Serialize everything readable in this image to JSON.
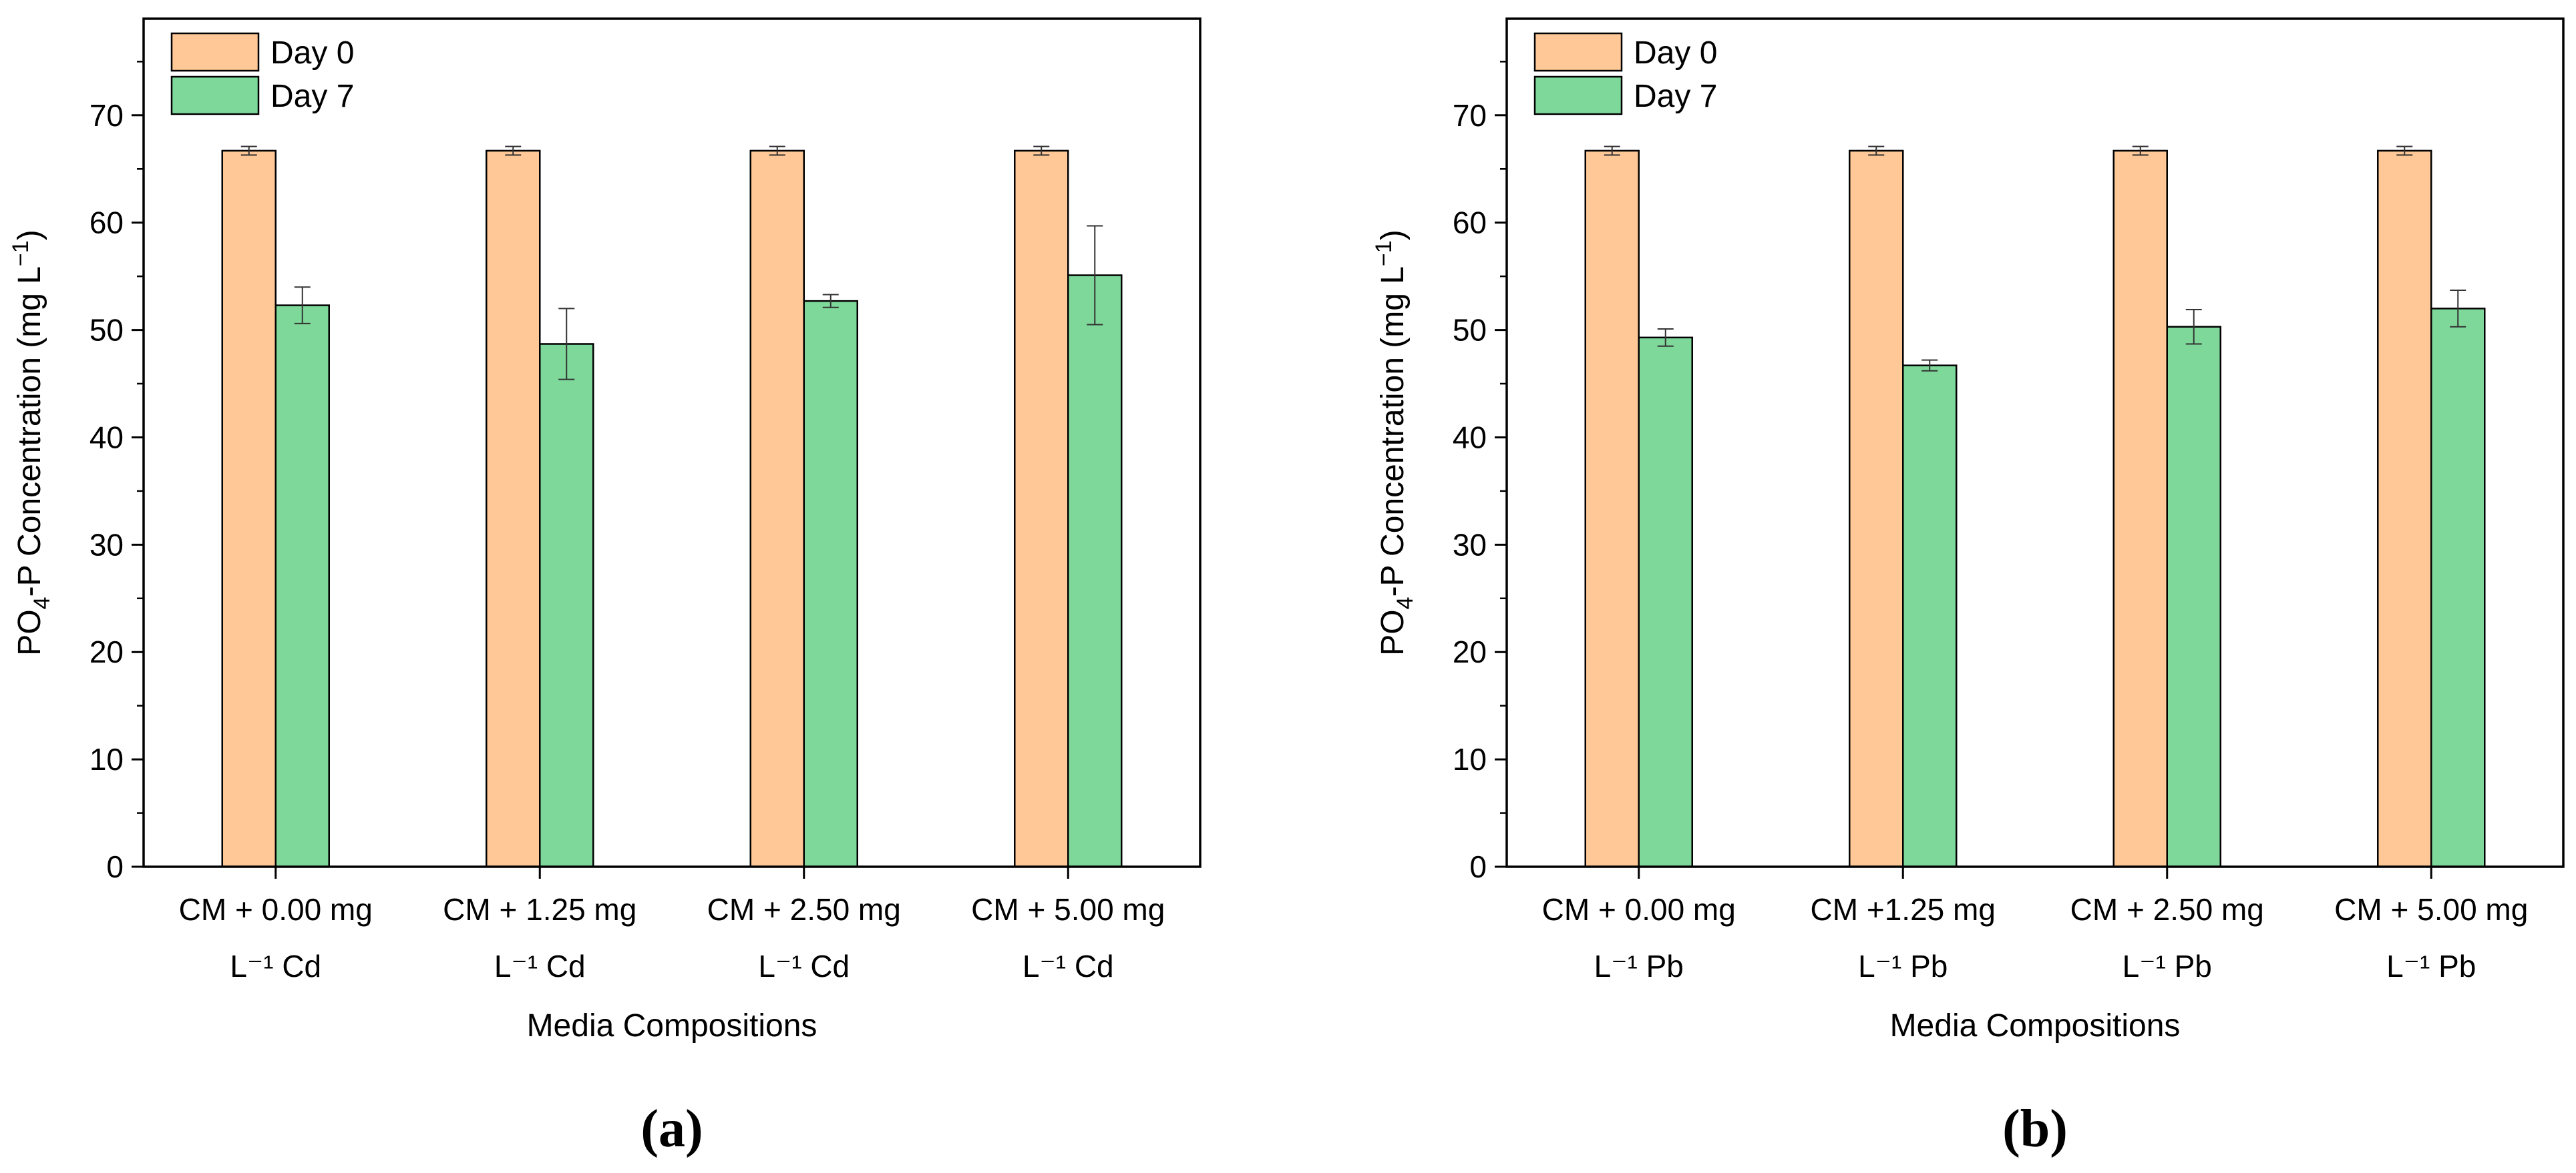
{
  "colors": {
    "day0": "#FFC896",
    "day7": "#7ED89A",
    "axis": "#000000"
  },
  "chart_data": [
    {
      "type": "bar",
      "panel_label": "(a)",
      "categories": [
        [
          "CM + 0.00 mg",
          "L⁻¹ Cd"
        ],
        [
          "CM + 1.25 mg",
          "L⁻¹ Cd"
        ],
        [
          "CM + 2.50 mg",
          "L⁻¹ Cd"
        ],
        [
          "CM + 5.00 mg",
          "L⁻¹ Cd"
        ]
      ],
      "series": [
        {
          "name": "Day 0",
          "values": [
            66.7,
            66.7,
            66.7,
            66.7
          ],
          "errors": [
            0.4,
            0.4,
            0.4,
            0.4
          ]
        },
        {
          "name": "Day 7",
          "values": [
            52.3,
            48.7,
            52.7,
            55.1
          ],
          "errors": [
            1.7,
            3.3,
            0.6,
            4.6
          ]
        }
      ],
      "xlabel": "Media Compositions",
      "ylabel_main": "PO",
      "ylabel_sub": "4",
      "ylabel_mid": "-P Concentration (mg L",
      "ylabel_sup": "−1",
      "ylabel_end": ")",
      "ylim": [
        0,
        79
      ],
      "yticks": [
        "0",
        "10",
        "20",
        "30",
        "40",
        "50",
        "60",
        "70"
      ],
      "legend_position": "top-left"
    },
    {
      "type": "bar",
      "panel_label": "(b)",
      "categories": [
        [
          "CM + 0.00 mg",
          "L⁻¹ Pb"
        ],
        [
          "CM  +1.25 mg",
          "L⁻¹ Pb"
        ],
        [
          "CM + 2.50 mg",
          "L⁻¹ Pb"
        ],
        [
          "CM + 5.00 mg",
          "L⁻¹ Pb"
        ]
      ],
      "series": [
        {
          "name": "Day 0",
          "values": [
            66.7,
            66.7,
            66.7,
            66.7
          ],
          "errors": [
            0.4,
            0.4,
            0.4,
            0.4
          ]
        },
        {
          "name": "Day 7",
          "values": [
            49.3,
            46.7,
            50.3,
            52.0
          ],
          "errors": [
            0.8,
            0.5,
            1.6,
            1.7
          ]
        }
      ],
      "xlabel": "Media Compositions",
      "ylabel_main": "PO",
      "ylabel_sub": "4",
      "ylabel_mid": "-P Concentration (mg L",
      "ylabel_sup": "−1",
      "ylabel_end": ")",
      "ylim": [
        0,
        79
      ],
      "yticks": [
        "0",
        "10",
        "20",
        "30",
        "40",
        "50",
        "60",
        "70"
      ],
      "legend_position": "top-left"
    }
  ]
}
